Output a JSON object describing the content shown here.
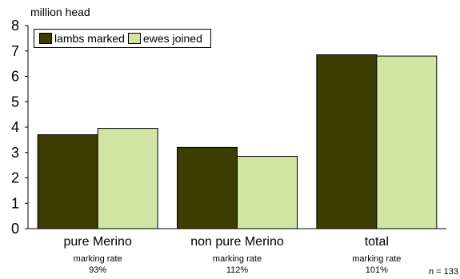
{
  "chart_data": {
    "type": "bar",
    "unit_label": "million head",
    "categories": [
      "pure Merino",
      "non pure Merino",
      "total"
    ],
    "category_notes": [
      {
        "line1": "marking rate",
        "line2": "93%"
      },
      {
        "line1": "marking rate",
        "line2": "112%"
      },
      {
        "line1": "marking rate",
        "line2": "101%"
      }
    ],
    "series": [
      {
        "name": "lambs marked",
        "values": [
          3.7,
          3.2,
          6.85
        ],
        "color": "#3d3d00"
      },
      {
        "name": "ewes joined",
        "values": [
          3.95,
          2.85,
          6.8
        ],
        "color": "#d0e4a4"
      }
    ],
    "ylim": [
      0,
      8
    ],
    "yticks": [
      "0",
      "1",
      "2",
      "3",
      "4",
      "5",
      "6",
      "7",
      "8"
    ],
    "grid": false,
    "legend_position": "top-left",
    "footnote": "n = 133"
  }
}
